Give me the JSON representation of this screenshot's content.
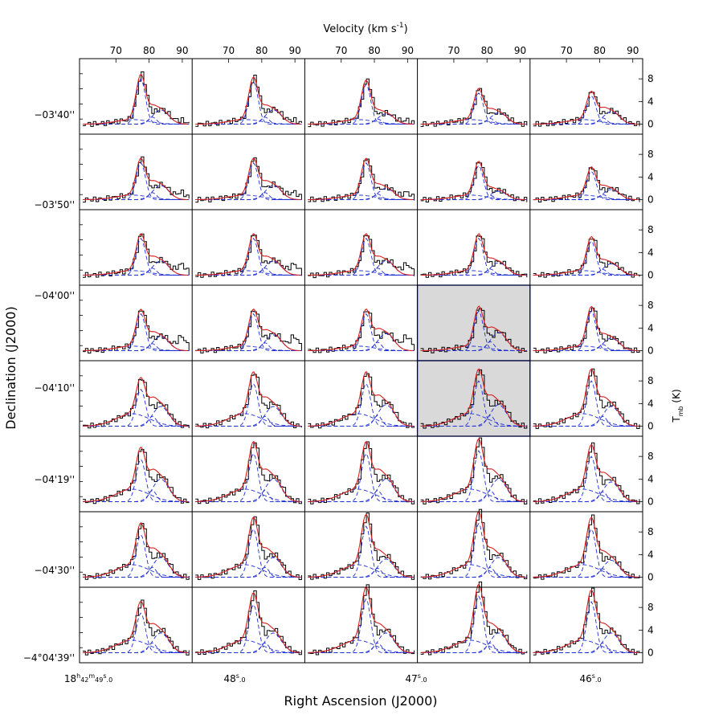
{
  "chart_data": {
    "type": "line",
    "layout": "grid of spectra, 8 rows x 5 columns",
    "top_axis": {
      "label": "Velocity (km s",
      "label_exponent": "-1",
      "label_close": ")",
      "unit": "km s^-1",
      "tick_labels": [
        "70",
        "80",
        "90"
      ],
      "tick_values": [
        70,
        80,
        90
      ],
      "xlim": [
        60,
        92
      ]
    },
    "right_axis": {
      "label": "T",
      "label_subscript": "mb",
      "label_suffix": " (K)",
      "tick_labels": [
        "0",
        "4",
        "8"
      ],
      "tick_values": [
        0,
        4,
        8
      ],
      "ylim": [
        -1.2,
        11
      ]
    },
    "left_axis": {
      "label": "Declination (J2000)",
      "tick_labels": [
        "−03'40''",
        "−03'50''",
        "−04'00''",
        "−04'10''",
        "−04'19''",
        "−04'30''",
        "−4°04'39''"
      ]
    },
    "bottom_axis": {
      "label": "Right Ascension (J2000)",
      "tick_labels": [
        {
          "main": "18",
          "sup1": "h",
          "m2": "42",
          "sup2": "m",
          "m3": "49",
          "sup3": "s",
          "tail": ".0"
        },
        {
          "main": "48",
          "sup3": "s",
          "tail": ".0"
        },
        {
          "main": "47",
          "sup3": "s",
          "tail": ".0"
        },
        {
          "main": "46",
          "sup3": "s",
          "tail": ".0"
        }
      ]
    },
    "highlighted_panels": [
      {
        "row": 4,
        "col": 4
      },
      {
        "row": 5,
        "col": 4
      }
    ],
    "series": [
      {
        "style": "observed spectrum (histogram)",
        "color": "#000000"
      },
      {
        "style": "total fit",
        "color": "#d62020"
      },
      {
        "style": "gaussian components",
        "color": "#1f2ed6"
      }
    ],
    "components_velocity": [
      77.5,
      81,
      84,
      77
    ],
    "peak_heights_by_row": [
      [
        8.0,
        7.5,
        7.0,
        5.5,
        5.0
      ],
      [
        6.5,
        6.5,
        6.5,
        6.0,
        5.0
      ],
      [
        6.5,
        6.5,
        6.5,
        6.5,
        6.0
      ],
      [
        6.5,
        6.5,
        6.5,
        7.0,
        7.0
      ],
      [
        6.5,
        7.5,
        7.5,
        8.0,
        8.0
      ],
      [
        7.5,
        8.5,
        8.5,
        9.0,
        8.0
      ],
      [
        7.5,
        8.5,
        9.0,
        9.5,
        8.5
      ],
      [
        7.0,
        8.5,
        9.5,
        10.0,
        9.0
      ]
    ],
    "secondary_heights_by_row": [
      [
        2.5,
        2.5,
        1.8,
        2.0,
        2.2
      ],
      [
        2.5,
        2.5,
        2.0,
        1.5,
        1.8
      ],
      [
        2.5,
        2.5,
        2.5,
        2.2,
        2.0
      ],
      [
        2.5,
        2.8,
        3.0,
        3.2,
        2.2
      ],
      [
        3.5,
        3.5,
        3.8,
        3.8,
        3.5
      ],
      [
        4.0,
        4.0,
        4.0,
        4.0,
        3.5
      ],
      [
        3.5,
        3.5,
        3.2,
        3.5,
        3.0
      ],
      [
        3.5,
        3.5,
        3.5,
        3.5,
        3.5
      ]
    ]
  }
}
